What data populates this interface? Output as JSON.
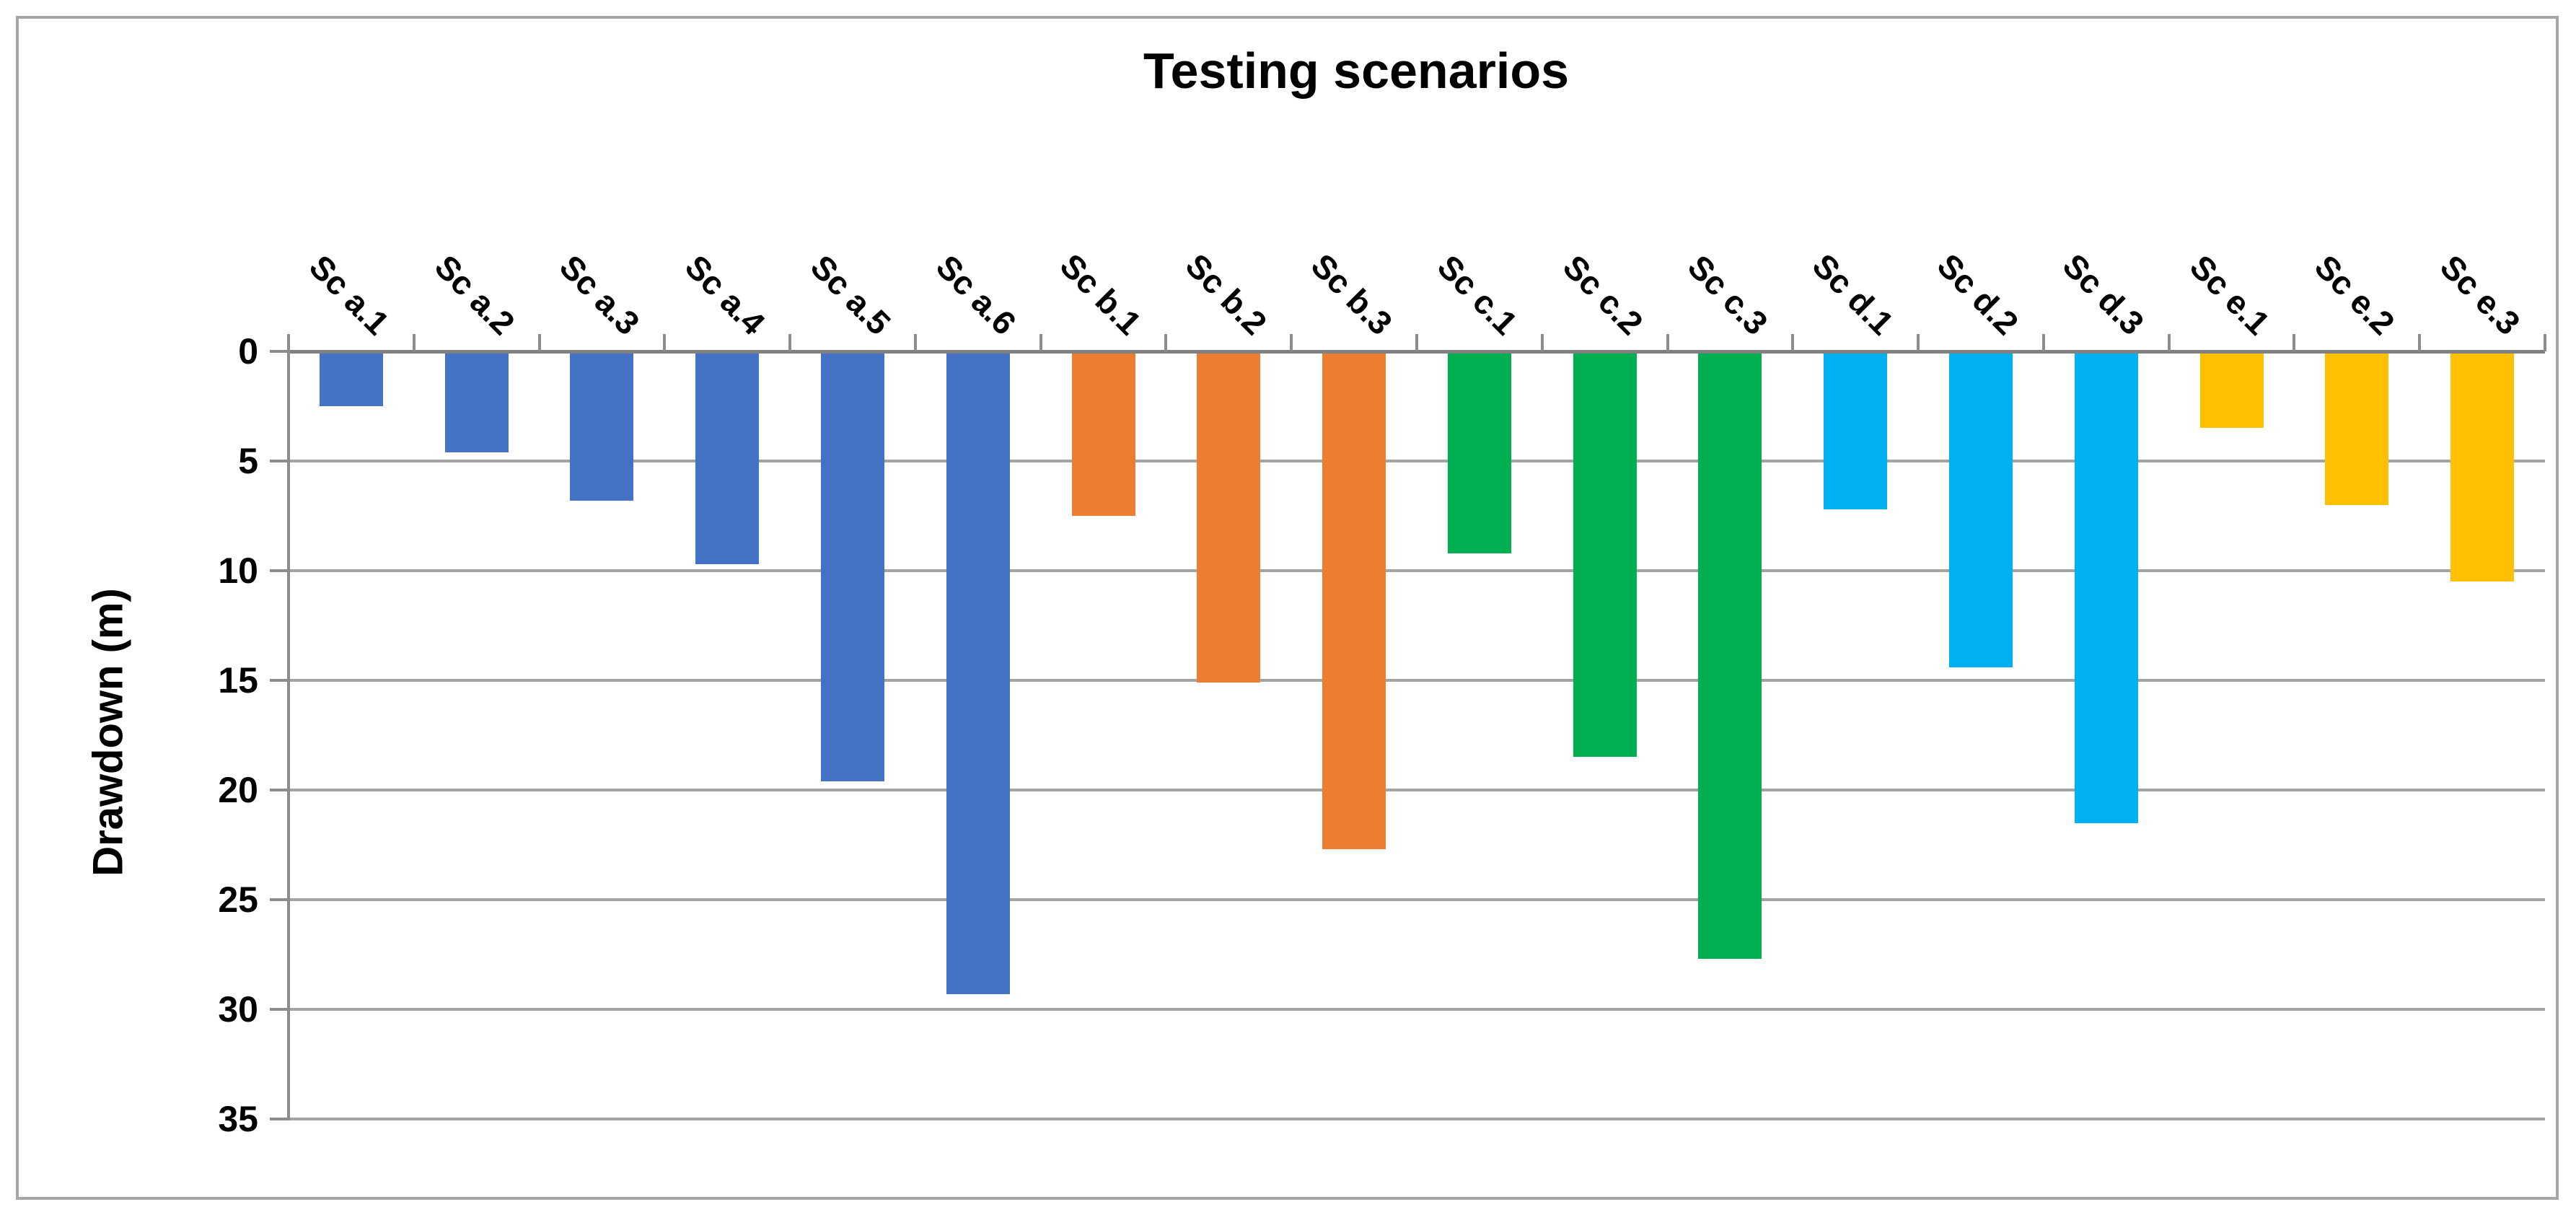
{
  "title": "Testing scenarios",
  "y_axis_label": "Drawdown (m)",
  "chart_data": {
    "type": "bar",
    "title": "Testing scenarios",
    "xlabel": "Testing scenarios",
    "ylabel": "Drawdown (m)",
    "orientation": "columns extend downward from zero axis",
    "categories": [
      "Sc a.1",
      "Sc a.2",
      "Sc a.3",
      "Sc a.4",
      "Sc a.5",
      "Sc a.6",
      "Sc b.1",
      "Sc b.2",
      "Sc b.3",
      "Sc c.1",
      "Sc c.2",
      "Sc c.3",
      "Sc d.1",
      "Sc d.2",
      "Sc d.3",
      "Sc e.1",
      "Sc e.2",
      "Sc e.3"
    ],
    "values": [
      2.5,
      4.6,
      6.8,
      9.7,
      19.6,
      29.3,
      7.5,
      15.1,
      22.7,
      9.2,
      18.5,
      27.7,
      7.2,
      14.4,
      21.5,
      3.5,
      7.0,
      10.5
    ],
    "groups": [
      "a",
      "a",
      "a",
      "a",
      "a",
      "a",
      "b",
      "b",
      "b",
      "c",
      "c",
      "c",
      "d",
      "d",
      "d",
      "e",
      "e",
      "e"
    ],
    "bar_colors": [
      "#4472C4",
      "#4472C4",
      "#4472C4",
      "#4472C4",
      "#4472C4",
      "#4472C4",
      "#ED7D31",
      "#ED7D31",
      "#ED7D31",
      "#00B050",
      "#00B050",
      "#00B050",
      "#00B0F0",
      "#00B0F0",
      "#00B0F0",
      "#FFC000",
      "#FFC000",
      "#FFC000"
    ],
    "y_ticks": [
      "0",
      "5",
      "10",
      "15",
      "20",
      "25",
      "30",
      "35"
    ],
    "ylim": [
      0,
      35
    ],
    "grid": true,
    "legend": false
  },
  "palette": {
    "series_a_blue": "#4472C4",
    "series_b_orange": "#ED7D31",
    "series_c_green": "#00B050",
    "series_d_cyan": "#00B0F0",
    "series_e_yellow": "#FFC000",
    "gridline": "#A3A3A3",
    "axis_line": "#8C8C8C",
    "zero_line": "#808080",
    "frame_border": "#A6A6A6",
    "text": "#000000"
  }
}
